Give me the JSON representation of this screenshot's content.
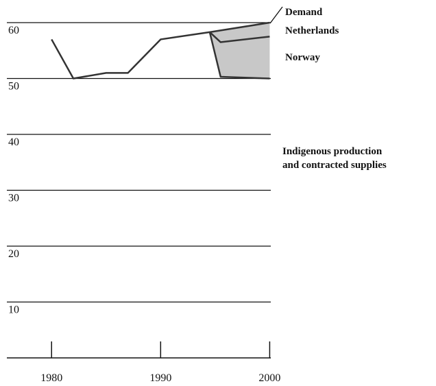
{
  "chart_data": {
    "type": "line",
    "xlim": [
      1975.9,
      2000.1
    ],
    "xticks": [
      1980,
      1990,
      2000
    ],
    "ylim": [
      0,
      60
    ],
    "yticks": [
      10,
      20,
      30,
      40,
      50,
      60
    ],
    "grid": true,
    "series": [
      {
        "name": "Demand",
        "color": "#333333",
        "x": [
          1980,
          1982,
          1985,
          1987,
          1990,
          1994.5,
          2000
        ],
        "values": [
          57,
          50,
          51,
          51,
          57,
          58.3,
          60
        ]
      },
      {
        "name": "Netherlands",
        "color": "#333333",
        "x": [
          1994.5,
          1995.5,
          2000
        ],
        "values": [
          58.3,
          56.5,
          57.5
        ]
      },
      {
        "name": "Norway",
        "color": "#333333",
        "x": [
          1994.5,
          1995.5,
          2000
        ],
        "values": [
          58.3,
          50.3,
          50
        ]
      }
    ],
    "annotation": [
      "Indigenous production",
      "and contracted supplies"
    ]
  }
}
